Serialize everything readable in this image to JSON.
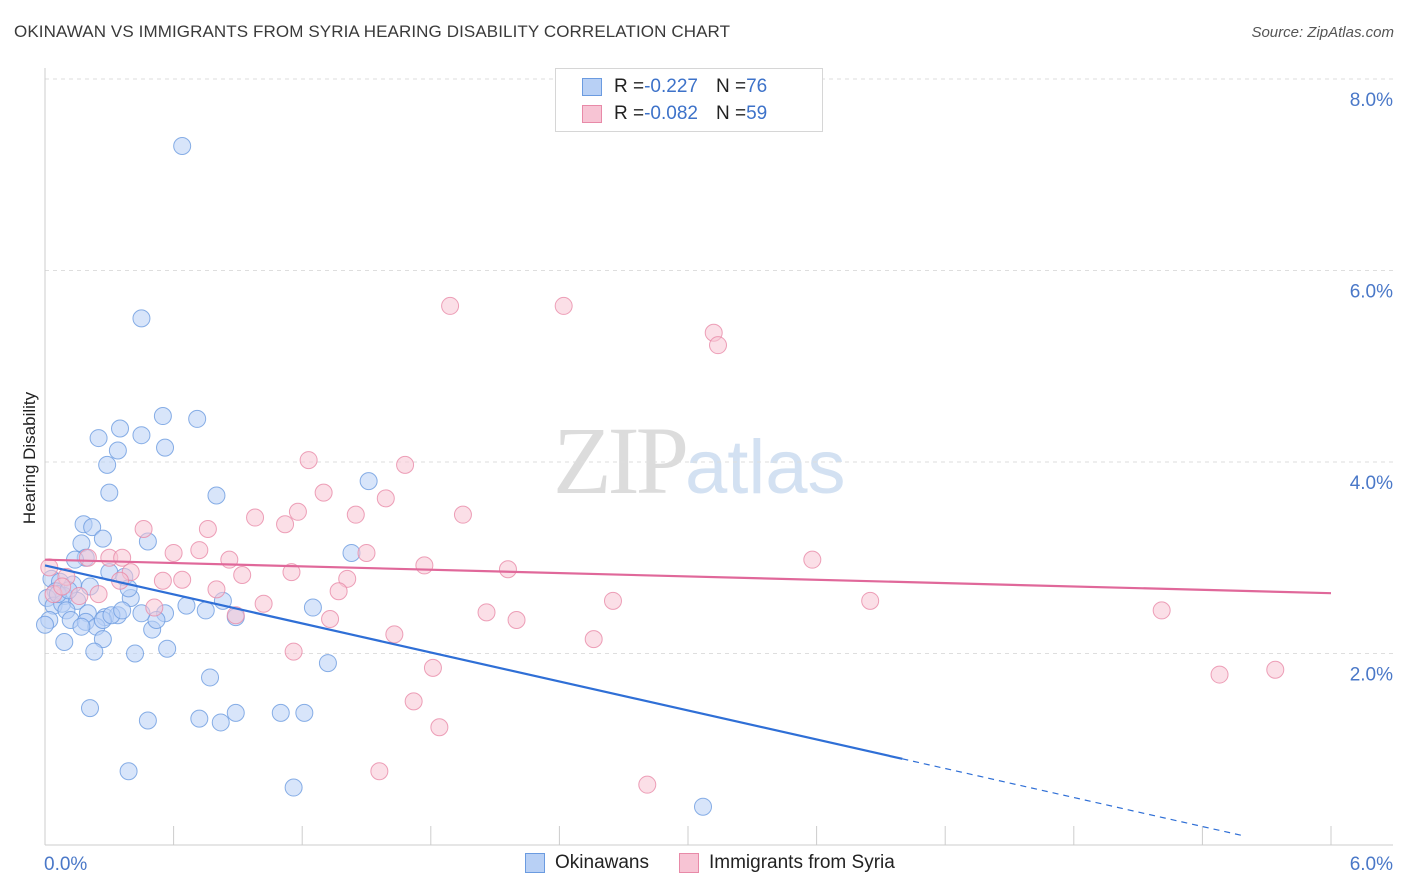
{
  "title": "OKINAWAN VS IMMIGRANTS FROM SYRIA HEARING DISABILITY CORRELATION CHART",
  "source": "Source: ZipAtlas.com",
  "watermark": {
    "zip": "ZIP",
    "atlas": "atlas"
  },
  "legend_top": [
    {
      "r_label": "R = ",
      "r_value": "-0.227",
      "n_label": "N = ",
      "n_value": "76"
    },
    {
      "r_label": "R = ",
      "r_value": "-0.082",
      "n_label": "N = ",
      "n_value": "59"
    }
  ],
  "legend_bottom": [
    "Okinawans",
    "Immigrants from Syria"
  ],
  "colors": {
    "blue_fill": "#b8d0f5",
    "blue_stroke": "#6b9be0",
    "blue_line": "#2f6fd6",
    "pink_fill": "#f7c4d4",
    "pink_stroke": "#e88aa8",
    "pink_line": "#e0689a",
    "axis_text": "#4a78c8",
    "grid": "#dedede"
  },
  "chart_data": {
    "type": "scatter",
    "title": "OKINAWAN VS IMMIGRANTS FROM SYRIA HEARING DISABILITY CORRELATION CHART",
    "xlabel": "",
    "ylabel": "Hearing Disability",
    "xlim": [
      0,
      6
    ],
    "ylim": [
      0,
      8
    ],
    "x_tick_labels": [
      "0.0%",
      "6.0%"
    ],
    "y_ticks": [
      2,
      4,
      6,
      8
    ],
    "y_tick_labels": [
      "2.0%",
      "4.0%",
      "6.0%",
      "8.0%"
    ],
    "grid": true,
    "legend_position": "top-center",
    "series": [
      {
        "name": "Okinawans",
        "color": "#6b9be0",
        "trend": {
          "x0": 0.0,
          "y0": 2.92,
          "x1": 4.0,
          "y1": 0.9,
          "dashed_to_x": 6.0
        },
        "points": [
          [
            0.64,
            7.3
          ],
          [
            0.45,
            5.5
          ],
          [
            0.55,
            4.48
          ],
          [
            0.71,
            4.45
          ],
          [
            0.35,
            4.35
          ],
          [
            0.45,
            4.28
          ],
          [
            0.25,
            4.25
          ],
          [
            0.34,
            4.12
          ],
          [
            0.56,
            4.15
          ],
          [
            0.29,
            3.97
          ],
          [
            0.3,
            3.68
          ],
          [
            0.8,
            3.65
          ],
          [
            1.51,
            3.8
          ],
          [
            0.18,
            3.35
          ],
          [
            0.22,
            3.32
          ],
          [
            0.27,
            3.2
          ],
          [
            0.17,
            3.15
          ],
          [
            0.48,
            3.17
          ],
          [
            0.19,
            3.0
          ],
          [
            0.14,
            2.98
          ],
          [
            1.43,
            3.05
          ],
          [
            0.03,
            2.78
          ],
          [
            0.07,
            2.75
          ],
          [
            0.13,
            2.72
          ],
          [
            0.21,
            2.7
          ],
          [
            0.3,
            2.85
          ],
          [
            0.37,
            2.8
          ],
          [
            0.05,
            2.65
          ],
          [
            0.09,
            2.6
          ],
          [
            0.01,
            2.58
          ],
          [
            0.04,
            2.5
          ],
          [
            0.08,
            2.52
          ],
          [
            0.15,
            2.55
          ],
          [
            0.4,
            2.58
          ],
          [
            0.1,
            2.45
          ],
          [
            0.2,
            2.42
          ],
          [
            0.28,
            2.38
          ],
          [
            0.34,
            2.4
          ],
          [
            0.39,
            2.68
          ],
          [
            0.56,
            2.42
          ],
          [
            0.75,
            2.45
          ],
          [
            0.83,
            2.55
          ],
          [
            0.89,
            2.38
          ],
          [
            1.25,
            2.48
          ],
          [
            0.02,
            2.35
          ],
          [
            0.12,
            2.35
          ],
          [
            0.19,
            2.33
          ],
          [
            0.24,
            2.28
          ],
          [
            0.27,
            2.35
          ],
          [
            0.5,
            2.25
          ],
          [
            0.09,
            2.12
          ],
          [
            0.27,
            2.15
          ],
          [
            0.23,
            2.02
          ],
          [
            0.42,
            2.0
          ],
          [
            0.57,
            2.05
          ],
          [
            1.32,
            1.9
          ],
          [
            0.77,
            1.75
          ],
          [
            0.21,
            1.43
          ],
          [
            0.48,
            1.3
          ],
          [
            0.72,
            1.32
          ],
          [
            0.82,
            1.28
          ],
          [
            0.89,
            1.38
          ],
          [
            1.1,
            1.38
          ],
          [
            1.21,
            1.38
          ],
          [
            0.39,
            0.77
          ],
          [
            1.16,
            0.6
          ],
          [
            3.07,
            0.4
          ],
          [
            0.0,
            2.3
          ],
          [
            0.06,
            2.62
          ],
          [
            0.31,
            2.4
          ],
          [
            0.17,
            2.28
          ],
          [
            0.11,
            2.66
          ],
          [
            0.36,
            2.45
          ],
          [
            0.52,
            2.35
          ],
          [
            0.45,
            2.42
          ],
          [
            0.66,
            2.5
          ]
        ]
      },
      {
        "name": "Immigrants from Syria",
        "color": "#e88aa8",
        "trend": {
          "x0": 0.0,
          "y0": 2.98,
          "x1": 6.0,
          "y1": 2.63
        },
        "points": [
          [
            1.89,
            5.63
          ],
          [
            2.42,
            5.63
          ],
          [
            3.12,
            5.35
          ],
          [
            3.14,
            5.22
          ],
          [
            1.23,
            4.02
          ],
          [
            1.68,
            3.97
          ],
          [
            1.3,
            3.68
          ],
          [
            1.59,
            3.62
          ],
          [
            1.18,
            3.48
          ],
          [
            1.45,
            3.45
          ],
          [
            1.95,
            3.45
          ],
          [
            0.98,
            3.42
          ],
          [
            1.12,
            3.35
          ],
          [
            0.46,
            3.3
          ],
          [
            0.76,
            3.3
          ],
          [
            0.6,
            3.05
          ],
          [
            0.72,
            3.08
          ],
          [
            1.5,
            3.05
          ],
          [
            0.2,
            3.0
          ],
          [
            0.3,
            3.0
          ],
          [
            0.36,
            3.0
          ],
          [
            0.86,
            2.98
          ],
          [
            0.4,
            2.85
          ],
          [
            1.77,
            2.92
          ],
          [
            2.16,
            2.88
          ],
          [
            3.58,
            2.98
          ],
          [
            1.15,
            2.85
          ],
          [
            0.92,
            2.82
          ],
          [
            0.64,
            2.77
          ],
          [
            0.55,
            2.76
          ],
          [
            0.35,
            2.76
          ],
          [
            0.1,
            2.8
          ],
          [
            1.41,
            2.78
          ],
          [
            0.8,
            2.67
          ],
          [
            1.37,
            2.65
          ],
          [
            0.04,
            2.62
          ],
          [
            0.16,
            2.6
          ],
          [
            2.65,
            2.55
          ],
          [
            3.85,
            2.55
          ],
          [
            1.02,
            2.52
          ],
          [
            0.51,
            2.48
          ],
          [
            2.06,
            2.43
          ],
          [
            5.21,
            2.45
          ],
          [
            1.33,
            2.36
          ],
          [
            2.2,
            2.35
          ],
          [
            0.89,
            2.4
          ],
          [
            1.63,
            2.2
          ],
          [
            2.56,
            2.15
          ],
          [
            1.16,
            2.02
          ],
          [
            1.81,
            1.85
          ],
          [
            5.48,
            1.78
          ],
          [
            5.74,
            1.83
          ],
          [
            1.72,
            1.5
          ],
          [
            1.84,
            1.23
          ],
          [
            1.56,
            0.77
          ],
          [
            2.81,
            0.63
          ],
          [
            0.02,
            2.9
          ],
          [
            0.08,
            2.7
          ],
          [
            0.25,
            2.62
          ]
        ]
      }
    ]
  }
}
